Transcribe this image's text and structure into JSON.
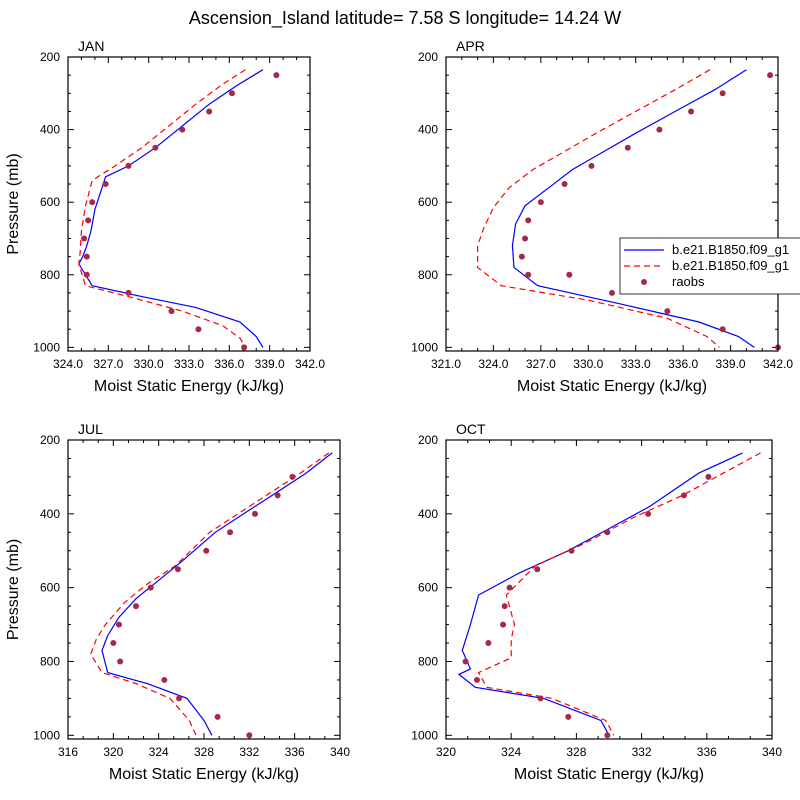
{
  "figure": {
    "title": "Ascension_Island  latitude= 7.58 S longitude= 14.24 W"
  },
  "legend": {
    "entries": [
      {
        "label": "b.e21.B1850.f09_g1",
        "color": "#0000ff",
        "style": "solid"
      },
      {
        "label": "b.e21.B1850.f09_g1",
        "color": "#ff0000",
        "style": "dashed"
      },
      {
        "label": "raobs",
        "color": "#a52a4a",
        "style": "marker"
      }
    ]
  },
  "chart_data": [
    {
      "type": "line",
      "panel": "JAN",
      "xlabel": "Moist Static Energy (kJ/kg)",
      "ylabel": "Pressure (mb)",
      "xlim": [
        324.0,
        342.0
      ],
      "ylim": [
        200,
        1010
      ],
      "y_reversed": true,
      "x_ticks": [
        "324.0",
        "327.0",
        "330.0",
        "333.0",
        "336.0",
        "339.0",
        "342.0"
      ],
      "x_tick_values": [
        324,
        327,
        330,
        333,
        336,
        339,
        342
      ],
      "y_ticks": [
        200,
        400,
        600,
        800,
        1000
      ],
      "series": [
        {
          "kind": "line",
          "color": "#0000ff",
          "dash": "solid",
          "x": [
            338.5,
            336.5,
            334.5,
            332.5,
            330.5,
            328.5,
            326.8,
            326.0,
            325.7,
            325.4,
            325.1,
            324.8,
            325.8,
            329.5,
            333.5,
            336.8,
            338.0,
            338.5
          ],
          "y": [
            235,
            280,
            330,
            390,
            450,
            500,
            530,
            620,
            680,
            720,
            750,
            770,
            830,
            860,
            890,
            930,
            970,
            1000
          ]
        },
        {
          "kind": "line",
          "color": "#ff0000",
          "dash": "dashed",
          "x": [
            337.2,
            335.5,
            333.5,
            331.5,
            329.5,
            327.5,
            325.8,
            325.3,
            325.0,
            324.9,
            324.8,
            325.3,
            328.5,
            332.5,
            335.5,
            336.8,
            337.2
          ],
          "y": [
            235,
            275,
            330,
            390,
            450,
            500,
            540,
            610,
            680,
            740,
            770,
            830,
            860,
            900,
            940,
            975,
            1000
          ]
        },
        {
          "kind": "marker",
          "color": "#a52a4a",
          "x": [
            339.5,
            336.2,
            334.5,
            332.5,
            330.5,
            328.5,
            326.8,
            325.8,
            325.5,
            325.2,
            325.4,
            325.4,
            328.5,
            331.7,
            333.7,
            337.1
          ],
          "y": [
            250,
            300,
            350,
            400,
            450,
            500,
            550,
            600,
            650,
            700,
            750,
            800,
            850,
            900,
            950,
            1000
          ]
        }
      ]
    },
    {
      "type": "line",
      "panel": "APR",
      "xlabel": "Moist Static Energy (kJ/kg)",
      "ylabel": "",
      "xlim": [
        321.0,
        342.0
      ],
      "ylim": [
        200,
        1010
      ],
      "y_reversed": true,
      "x_ticks": [
        "321.0",
        "324.0",
        "327.0",
        "330.0",
        "333.0",
        "336.0",
        "339.0",
        "342.0"
      ],
      "x_tick_values": [
        321,
        324,
        327,
        330,
        333,
        336,
        339,
        342
      ],
      "y_ticks": [
        200,
        400,
        600,
        800,
        1000
      ],
      "series": [
        {
          "kind": "line",
          "color": "#0000ff",
          "dash": "solid",
          "x": [
            340.0,
            338.0,
            335.5,
            333.0,
            331.0,
            329.0,
            327.5,
            326.0,
            325.4,
            325.2,
            325.3,
            326.8,
            332.0,
            337.0,
            339.5,
            340.5
          ],
          "y": [
            235,
            290,
            350,
            410,
            460,
            510,
            560,
            610,
            660,
            720,
            780,
            830,
            880,
            930,
            970,
            1000
          ]
        },
        {
          "kind": "line",
          "color": "#ff0000",
          "dash": "dashed",
          "x": [
            337.7,
            335.5,
            333.0,
            330.5,
            328.5,
            326.5,
            325.0,
            324.0,
            323.4,
            323.0,
            323.0,
            324.5,
            330.0,
            335.0,
            337.5,
            338.3
          ],
          "y": [
            235,
            290,
            350,
            410,
            460,
            510,
            560,
            615,
            670,
            720,
            780,
            830,
            870,
            920,
            970,
            1000
          ]
        },
        {
          "kind": "marker",
          "color": "#a52a4a",
          "x": [
            341.5,
            338.5,
            336.5,
            334.5,
            332.5,
            330.2,
            328.5,
            327.0,
            326.2,
            326.0,
            325.8,
            326.2,
            328.8,
            331.5,
            335.0,
            338.5,
            342.0
          ],
          "y": [
            250,
            300,
            350,
            400,
            450,
            500,
            550,
            600,
            650,
            700,
            750,
            800,
            800,
            850,
            900,
            950,
            1000
          ]
        }
      ]
    },
    {
      "type": "line",
      "panel": "JUL",
      "xlabel": "Moist Static Energy (kJ/kg)",
      "ylabel": "Pressure (mb)",
      "xlim": [
        316,
        340
      ],
      "ylim": [
        200,
        1010
      ],
      "y_reversed": true,
      "x_ticks": [
        "316",
        "320",
        "324",
        "328",
        "332",
        "336",
        "340"
      ],
      "x_tick_values": [
        316,
        320,
        324,
        328,
        332,
        336,
        340
      ],
      "y_ticks": [
        200,
        400,
        600,
        800,
        1000
      ],
      "series": [
        {
          "kind": "line",
          "color": "#0000ff",
          "dash": "solid",
          "x": [
            339.3,
            337.0,
            334.5,
            332.0,
            329.0,
            326.0,
            324.0,
            322.0,
            320.5,
            319.5,
            319.0,
            319.5,
            323.0,
            326.5,
            328.0,
            328.7
          ],
          "y": [
            235,
            290,
            340,
            390,
            450,
            530,
            580,
            630,
            680,
            730,
            770,
            830,
            860,
            900,
            960,
            1000
          ]
        },
        {
          "kind": "line",
          "color": "#ff0000",
          "dash": "dashed",
          "x": [
            339.0,
            336.5,
            334.0,
            331.5,
            328.5,
            325.5,
            323.0,
            321.0,
            319.3,
            318.5,
            318.0,
            319.0,
            322.0,
            325.0,
            326.7,
            327.3
          ],
          "y": [
            235,
            290,
            340,
            390,
            450,
            540,
            590,
            640,
            700,
            740,
            780,
            830,
            860,
            900,
            960,
            1000
          ]
        },
        {
          "kind": "marker",
          "color": "#a52a4a",
          "x": [
            335.8,
            334.5,
            332.5,
            330.3,
            328.2,
            325.7,
            323.3,
            322.0,
            320.5,
            320.0,
            320.6,
            324.5,
            325.8,
            329.2,
            332.0
          ],
          "y": [
            300,
            350,
            400,
            450,
            500,
            550,
            600,
            650,
            700,
            750,
            800,
            850,
            900,
            950,
            1000
          ]
        }
      ]
    },
    {
      "type": "line",
      "panel": "OCT",
      "xlabel": "Moist Static Energy (kJ/kg)",
      "ylabel": "",
      "xlim": [
        320,
        340
      ],
      "ylim": [
        200,
        1010
      ],
      "y_reversed": true,
      "x_ticks": [
        "320",
        "324",
        "328",
        "332",
        "336",
        "340"
      ],
      "x_tick_values": [
        320,
        324,
        328,
        332,
        336,
        340
      ],
      "y_ticks": [
        200,
        400,
        600,
        800,
        1000
      ],
      "series": [
        {
          "kind": "line",
          "color": "#0000ff",
          "dash": "solid",
          "x": [
            338.2,
            335.5,
            332.5,
            330.0,
            327.5,
            324.5,
            322.0,
            321.5,
            321.0,
            321.5,
            320.8,
            321.8,
            326.0,
            329.5,
            330.0
          ],
          "y": [
            235,
            290,
            380,
            440,
            500,
            560,
            620,
            700,
            770,
            820,
            835,
            870,
            900,
            960,
            1000
          ]
        },
        {
          "kind": "line",
          "color": "#ff0000",
          "dash": "dashed",
          "x": [
            339.3,
            337.0,
            334.5,
            331.5,
            328.5,
            325.5,
            323.7,
            324.2,
            324.0,
            324.0,
            322.0,
            322.5,
            326.5,
            329.8,
            330.3
          ],
          "y": [
            235,
            290,
            350,
            410,
            480,
            540,
            620,
            700,
            740,
            790,
            830,
            870,
            900,
            960,
            1000
          ]
        },
        {
          "kind": "marker",
          "color": "#a52a4a",
          "x": [
            336.1,
            334.6,
            332.4,
            329.9,
            327.7,
            325.6,
            323.9,
            323.6,
            323.5,
            322.6,
            321.2,
            321.9,
            325.8,
            327.5,
            329.9
          ],
          "y": [
            300,
            350,
            400,
            450,
            500,
            550,
            600,
            650,
            700,
            750,
            800,
            850,
            900,
            950,
            1000
          ]
        }
      ]
    }
  ]
}
